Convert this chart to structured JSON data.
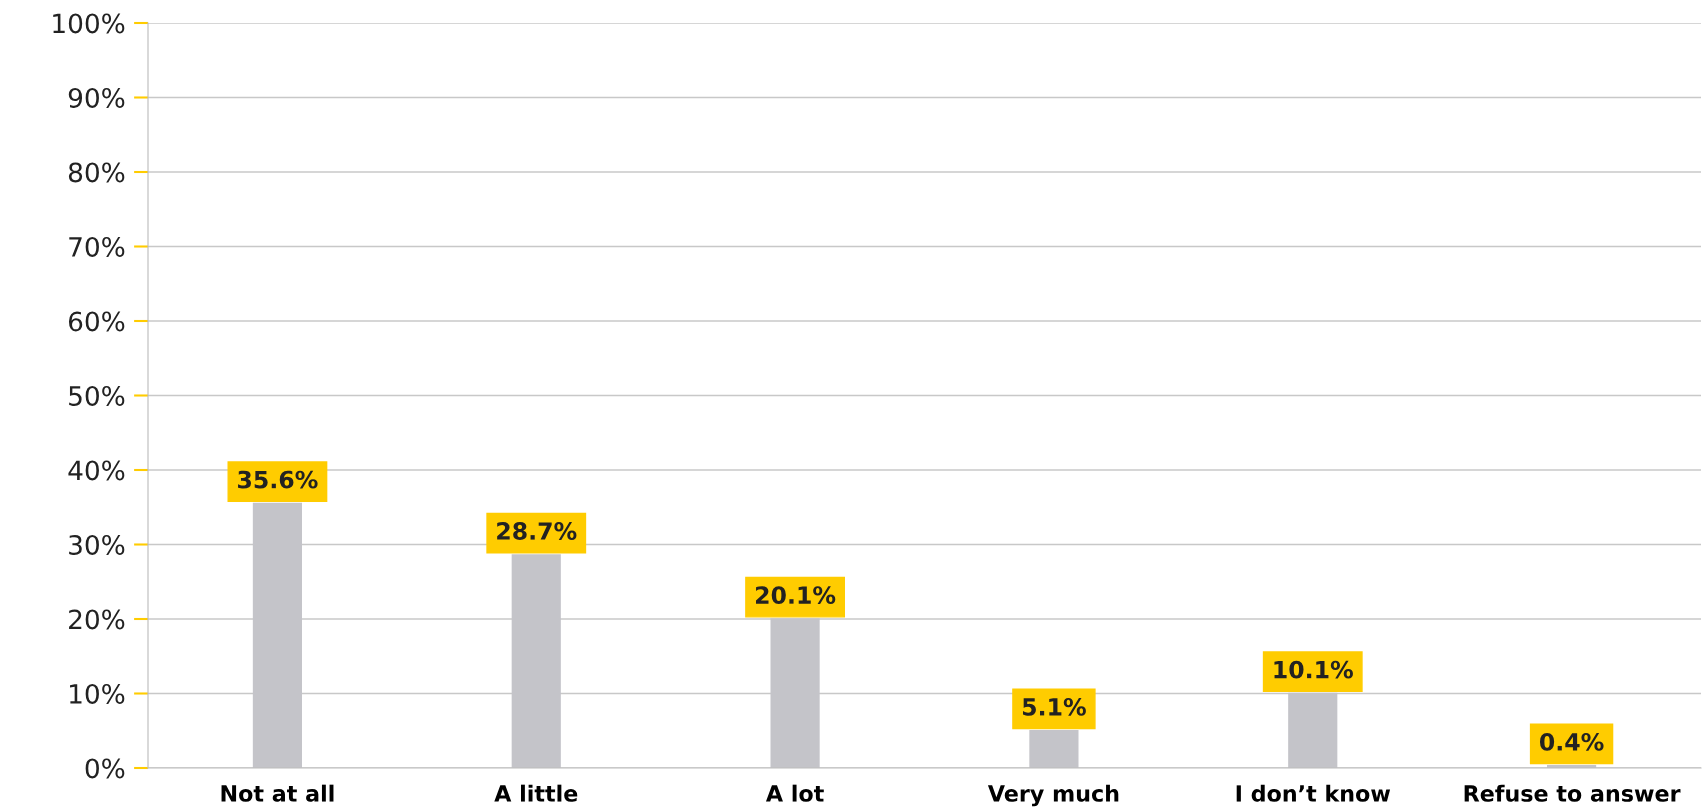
{
  "chart_data": {
    "type": "bar",
    "categories": [
      "Not at all",
      "A little",
      "A lot",
      "Very much",
      "I don’t know",
      "Refuse to answer"
    ],
    "values": [
      35.6,
      28.7,
      20.1,
      5.1,
      10.1,
      0.4
    ],
    "color": "#c4c4c9",
    "value_labels": [
      "35.6%",
      "28.7%",
      "20.1%",
      "5.1%",
      "10.1%",
      "0.4%"
    ],
    "ylim": [
      0,
      100
    ],
    "yticks": [
      {
        "value": 0,
        "label": "0%"
      },
      {
        "value": 10,
        "label": "10%"
      },
      {
        "value": 20,
        "label": "20%"
      },
      {
        "value": 30,
        "label": "30%"
      },
      {
        "value": 40,
        "label": "40%"
      },
      {
        "value": 50,
        "label": "50%"
      },
      {
        "value": 60,
        "label": "60%"
      },
      {
        "value": 70,
        "label": "70%"
      },
      {
        "value": 80,
        "label": "80%"
      },
      {
        "value": 90,
        "label": "90%"
      },
      {
        "value": 100,
        "label": "100%"
      }
    ],
    "grid": "y"
  }
}
